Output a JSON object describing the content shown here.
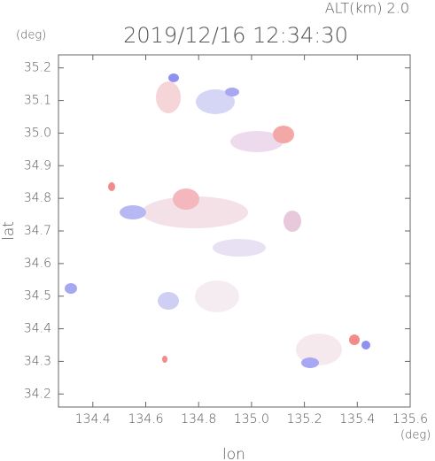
{
  "chart_data": {
    "type": "radar-map",
    "title": "2019/12/16 12:34:30",
    "annotation": "ALT(km) 2.0",
    "y_unit": "(deg)",
    "x_unit": "(deg)",
    "xlabel": "lon",
    "ylabel": "lat",
    "xlim": [
      134.27,
      135.6
    ],
    "ylim": [
      34.16,
      35.24
    ],
    "xticks": [
      134.4,
      134.6,
      134.8,
      {
        "value": 135.0,
        "label": "135.0"
      },
      135.2,
      135.4,
      135.6
    ],
    "yticks": [
      34.2,
      34.3,
      34.4,
      34.5,
      34.6,
      34.7,
      34.8,
      34.9,
      {
        "value": 35.0,
        "label": "35.0"
      },
      35.1,
      35.2
    ]
  }
}
